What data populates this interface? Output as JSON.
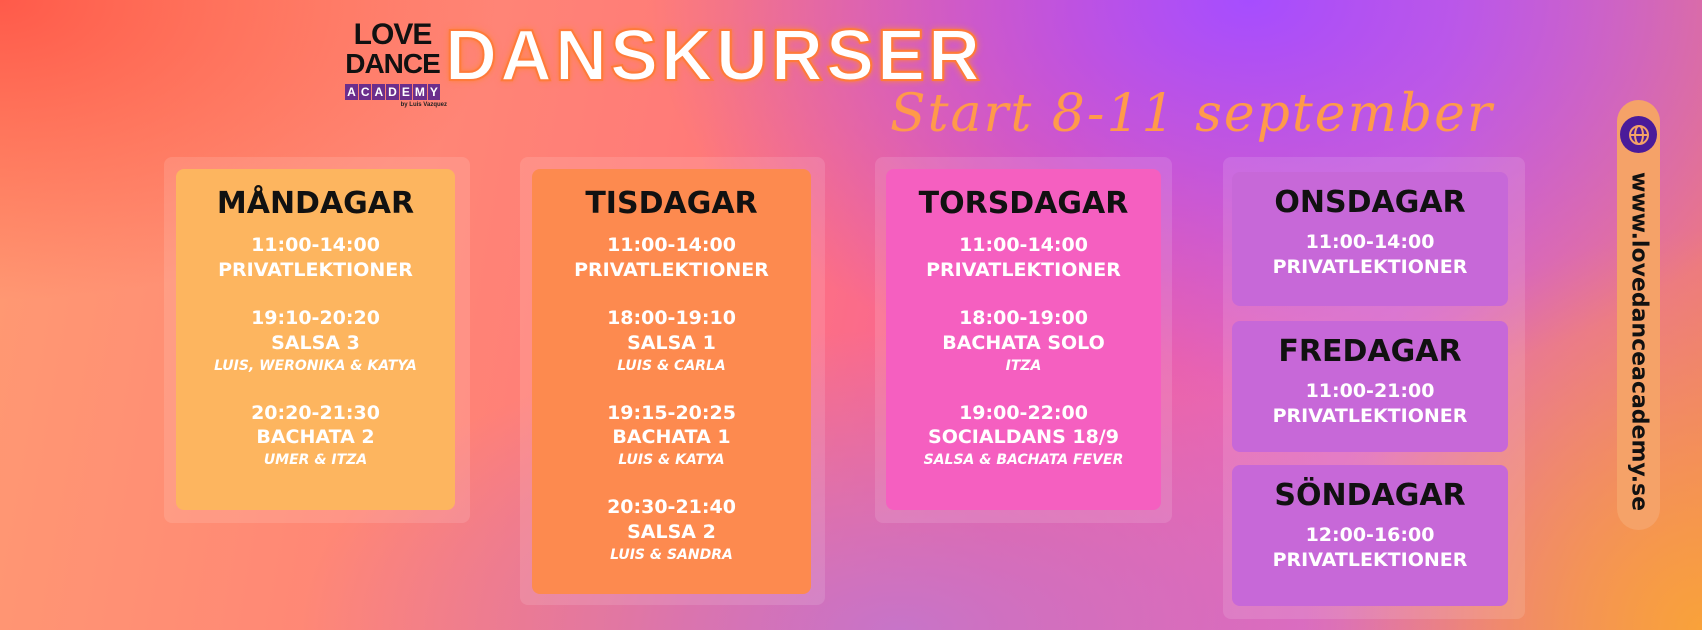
{
  "logo": {
    "line1": "LOVE",
    "line2": "DANCE",
    "line3": [
      "A",
      "C",
      "A",
      "D",
      "E",
      "M",
      "Y"
    ],
    "byline": "by Luis Vazquez"
  },
  "title": "DANSKURSER",
  "subtitle": "Start 8-11 september",
  "website": "www.lovedanceacademy.se",
  "colors": {
    "monday": "#fdb55f",
    "tuesday": "#fd8a4f",
    "thursday": "#f55fc0",
    "right": "#c768d8",
    "globe": "#4a1b9a"
  },
  "days": [
    {
      "name": "MÅNDAGAR",
      "slots": [
        {
          "time": "11:00-14:00",
          "class": "PRIVATLEKTIONER"
        },
        {
          "time": "19:10-20:20",
          "class": "SALSA 3",
          "teachers": "LUIS, WERONIKA & KATYA"
        },
        {
          "time": "20:20-21:30",
          "class": "BACHATA 2",
          "teachers": "UMER & ITZA"
        }
      ]
    },
    {
      "name": "TISDAGAR",
      "slots": [
        {
          "time": "11:00-14:00",
          "class": "PRIVATLEKTIONER"
        },
        {
          "time": "18:00-19:10",
          "class": "SALSA 1",
          "teachers": "LUIS & CARLA"
        },
        {
          "time": "19:15-20:25",
          "class": "BACHATA 1",
          "teachers": "LUIS & KATYA"
        },
        {
          "time": "20:30-21:40",
          "class": "SALSA 2",
          "teachers": "LUIS & SANDRA"
        }
      ]
    },
    {
      "name": "TORSDAGAR",
      "slots": [
        {
          "time": "11:00-14:00",
          "class": "PRIVATLEKTIONER"
        },
        {
          "time": "18:00-19:00",
          "class": "BACHATA SOLO",
          "teachers": "ITZA"
        },
        {
          "time": "19:00-22:00",
          "class": "SOCIALDANS 18/9",
          "teachers": "SALSA & BACHATA FEVER"
        }
      ]
    },
    {
      "name": "ONSDAGAR",
      "slots": [
        {
          "time": "11:00-14:00",
          "class": "PRIVATLEKTIONER"
        }
      ]
    },
    {
      "name": "FREDAGAR",
      "slots": [
        {
          "time": "11:00-21:00",
          "class": "PRIVATLEKTIONER"
        }
      ]
    },
    {
      "name": "SÖNDAGAR",
      "slots": [
        {
          "time": "12:00-16:00",
          "class": "PRIVATLEKTIONER"
        }
      ]
    }
  ]
}
